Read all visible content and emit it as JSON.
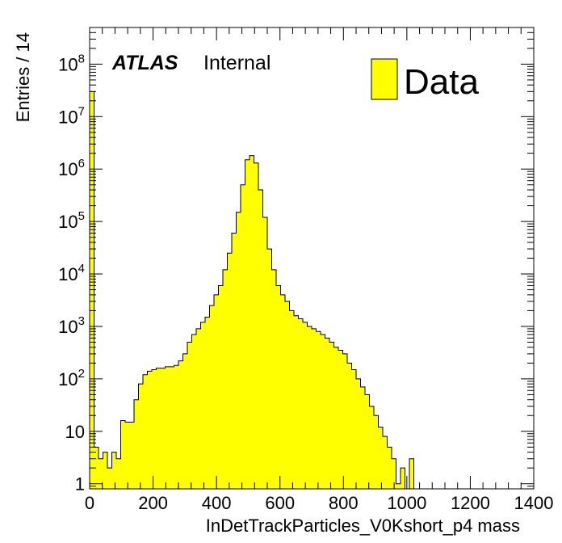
{
  "chart_data": {
    "type": "histogram",
    "title": "",
    "xlabel": "InDetTrackParticles_V0Kshort_p4 mass",
    "ylabel": "Entries / 14",
    "xlim": [
      0,
      1400
    ],
    "ylim": [
      0.8,
      500000000
    ],
    "yscale": "log",
    "bin_width": 14,
    "x_ticks": [
      0,
      200,
      400,
      600,
      800,
      1000,
      1200,
      1400
    ],
    "x_tick_labels": [
      "0",
      "200",
      "400",
      "600",
      "800",
      "1000",
      "1200",
      "1400"
    ],
    "y_ticks": [
      1,
      10,
      100,
      1000,
      10000,
      100000,
      1000000,
      10000000,
      100000000
    ],
    "y_tick_labels": [
      {
        "base": "1",
        "exp": ""
      },
      {
        "base": "10",
        "exp": ""
      },
      {
        "base": "10",
        "exp": "2"
      },
      {
        "base": "10",
        "exp": "3"
      },
      {
        "base": "10",
        "exp": "4"
      },
      {
        "base": "10",
        "exp": "5"
      },
      {
        "base": "10",
        "exp": "6"
      },
      {
        "base": "10",
        "exp": "7"
      },
      {
        "base": "10",
        "exp": "8"
      }
    ],
    "fill_color": "#ffff00",
    "line_color": "#000000",
    "legend": {
      "position": "top-right",
      "entries": [
        "Data"
      ]
    },
    "annotation": {
      "bold_italic": "ATLAS",
      "normal": "Internal"
    },
    "series": [
      {
        "name": "Data",
        "bin_edges_start": 0,
        "values": [
          30000000,
          5,
          3,
          4,
          2,
          4,
          3,
          16,
          15,
          15,
          40,
          80,
          120,
          140,
          150,
          160,
          160,
          170,
          170,
          180,
          220,
          300,
          500,
          700,
          900,
          1200,
          1500,
          2500,
          4000,
          6000,
          12000,
          25000,
          60000,
          150000,
          500000,
          1500000,
          1800000,
          1300000,
          400000,
          120000,
          30000,
          12000,
          6000,
          4000,
          3000,
          2000,
          1600,
          1400,
          1200,
          1000,
          900,
          800,
          700,
          600,
          500,
          400,
          350,
          300,
          200,
          150,
          100,
          70,
          50,
          30,
          20,
          12,
          8,
          5,
          3,
          1,
          2,
          0,
          3,
          0,
          0,
          0,
          0,
          0,
          0,
          0,
          0,
          0,
          0,
          0,
          0,
          0,
          0,
          0,
          0,
          0,
          0,
          0,
          0,
          0,
          0,
          0,
          0,
          0,
          0,
          0
        ]
      }
    ]
  }
}
